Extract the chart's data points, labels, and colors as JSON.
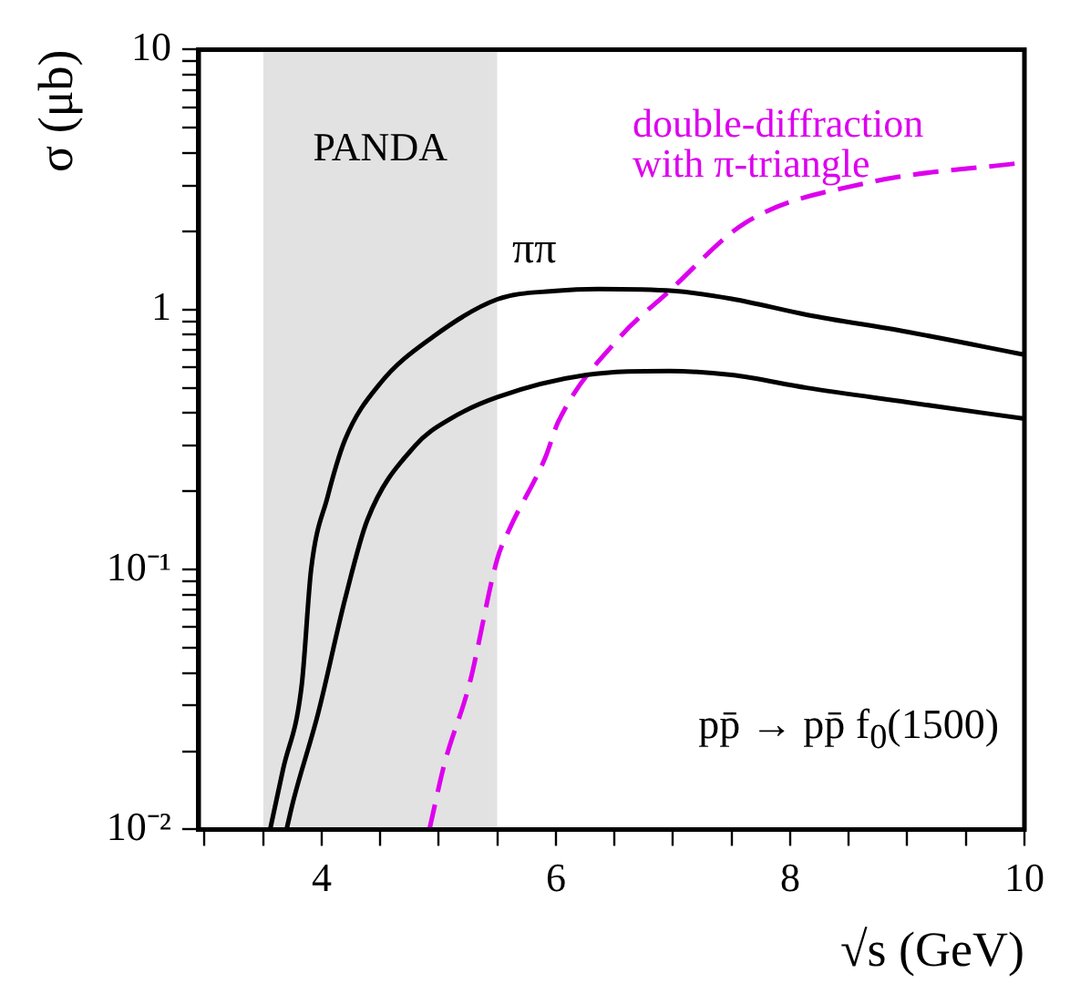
{
  "chart_data": {
    "type": "line",
    "xlabel": "√s (GeV)",
    "ylabel": "σ (μb)",
    "log": "y",
    "xlim": [
      2.95,
      10
    ],
    "ylim": [
      0.01,
      10
    ],
    "xticks": [
      {
        "value": 3,
        "label": null
      },
      {
        "value": 3.5,
        "label": null
      },
      4,
      {
        "value": 4.5,
        "label": null
      },
      {
        "value": 5,
        "label": null
      },
      {
        "value": 5.5,
        "label": null
      },
      6,
      {
        "value": 6.5,
        "label": null
      },
      {
        "value": 7,
        "label": null
      },
      {
        "value": 7.5,
        "label": null
      },
      8,
      {
        "value": 8.5,
        "label": null
      },
      {
        "value": 9,
        "label": null
      },
      {
        "value": 9.5,
        "label": null
      },
      10
    ],
    "yticks": [
      {
        "value": 0.01,
        "label": "10⁻²"
      },
      {
        "value": 0.02,
        "label": null
      },
      {
        "value": 0.03,
        "label": null
      },
      {
        "value": 0.04,
        "label": null
      },
      {
        "value": 0.05,
        "label": null
      },
      {
        "value": 0.06,
        "label": null
      },
      {
        "value": 0.07,
        "label": null
      },
      {
        "value": 0.08,
        "label": null
      },
      {
        "value": 0.09,
        "label": null
      },
      {
        "value": 0.1,
        "label": "10⁻¹"
      },
      {
        "value": 0.2,
        "label": null
      },
      {
        "value": 0.3,
        "label": null
      },
      {
        "value": 0.4,
        "label": null
      },
      {
        "value": 0.5,
        "label": null
      },
      {
        "value": 0.6,
        "label": null
      },
      {
        "value": 0.7,
        "label": null
      },
      {
        "value": 0.8,
        "label": null
      },
      {
        "value": 0.9,
        "label": null
      },
      1,
      {
        "value": 2,
        "label": null
      },
      {
        "value": 3,
        "label": null
      },
      {
        "value": 4,
        "label": null
      },
      {
        "value": 5,
        "label": null
      },
      {
        "value": 6,
        "label": null
      },
      {
        "value": 7,
        "label": null
      },
      {
        "value": 8,
        "label": null
      },
      {
        "value": 9,
        "label": null
      },
      10
    ],
    "grid": false,
    "legend": false,
    "marker": "none",
    "series": [
      {
        "color": "#000000",
        "line_style": "solid",
        "x": [
          3.56,
          3.67,
          3.83,
          3.91,
          4.05,
          4.2,
          4.5,
          4.95,
          5.5,
          6.0,
          6.36,
          7.0,
          7.5,
          8.14,
          9.0,
          10
        ],
        "values": [
          0.01,
          0.017,
          0.036,
          0.1,
          0.19,
          0.316,
          0.52,
          0.785,
          1.095,
          1.18,
          1.2,
          1.18,
          1.1,
          0.955,
          0.82,
          0.67
        ]
      },
      {
        "color": "#000000",
        "line_style": "solid",
        "x": [
          3.7,
          3.76,
          3.97,
          4.2,
          4.39,
          4.8,
          5.1,
          5.5,
          6.26,
          6.97,
          7.5,
          8.14,
          9.0,
          10
        ],
        "values": [
          0.01,
          0.013,
          0.028,
          0.077,
          0.155,
          0.3,
          0.38,
          0.46,
          0.56,
          0.58,
          0.56,
          0.5,
          0.44,
          0.38
        ]
      },
      {
        "name": "double-diffraction with π-triangle",
        "color": "#dd00ee",
        "line_style": "dashed",
        "x": [
          4.92,
          5.05,
          5.26,
          5.5,
          5.6,
          5.91,
          6.02,
          6.52,
          6.97,
          7.62,
          8.64,
          10
        ],
        "values": [
          0.01,
          0.018,
          0.036,
          0.11,
          0.142,
          0.27,
          0.37,
          0.76,
          1.18,
          2.16,
          3.06,
          3.68
        ]
      }
    ],
    "bands": [
      {
        "axis": "x",
        "from": 3.5,
        "to": 5.5,
        "label": "PANDA",
        "color": "#e2e2e2"
      }
    ],
    "annotations": [
      "ππ",
      "pp̄ → pp̄ f$_{0}$(1500)"
    ]
  }
}
